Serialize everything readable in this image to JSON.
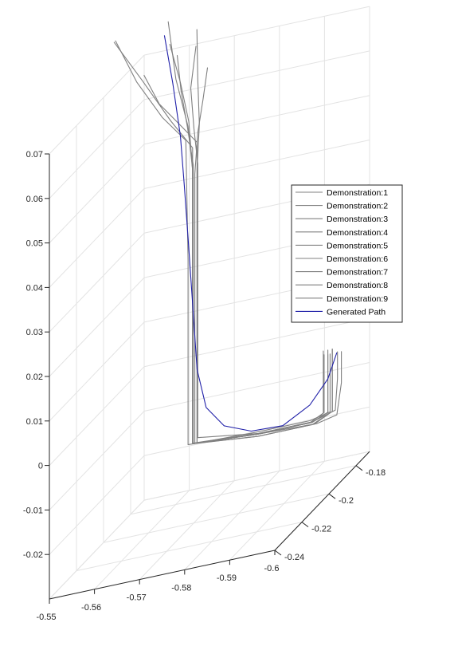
{
  "chart_data": {
    "type": "line",
    "projection": "3d",
    "title": "",
    "grid": true,
    "legend_position": "right-center",
    "colors": {
      "demonstration": "#808080",
      "generated": "#1f1fa8",
      "axis": "#262626",
      "grid": "#e3e3e3"
    },
    "x_axis": {
      "ticks": [
        -0.55,
        -0.56,
        -0.57,
        -0.58,
        -0.59,
        -0.6
      ],
      "tick_labels": [
        "-0.55",
        "-0.56",
        "-0.57",
        "-0.58",
        "-0.59",
        "-0.6"
      ],
      "range": [
        -0.6,
        -0.55
      ]
    },
    "y_axis": {
      "ticks": [
        -0.18,
        -0.2,
        -0.22,
        -0.24
      ],
      "tick_labels": [
        "-0.18",
        "-0.2",
        "-0.22",
        "-0.24"
      ],
      "range": [
        -0.24,
        -0.17
      ]
    },
    "z_axis": {
      "ticks": [
        -0.02,
        -0.01,
        0,
        0.01,
        0.02,
        0.03,
        0.04,
        0.05,
        0.06,
        0.07
      ],
      "tick_labels": [
        "-0.02",
        "-0.01",
        "0",
        "0.01",
        "0.02",
        "0.03",
        "0.04",
        "0.05",
        "0.06",
        "0.07"
      ],
      "range": [
        -0.03,
        0.07
      ]
    },
    "legend": [
      "Demonstration:1",
      "Demonstration:2",
      "Demonstration:3",
      "Demonstration:4",
      "Demonstration:5",
      "Demonstration:6",
      "Demonstration:7",
      "Demonstration:8",
      "Demonstration:9",
      "Generated Path"
    ],
    "series": [
      {
        "name": "Demonstration:1",
        "points": [
          [
            -0.571,
            -0.201,
            0.081
          ],
          [
            -0.5715,
            -0.202,
            0.07
          ],
          [
            -0.572,
            -0.2025,
            0.06
          ],
          [
            -0.5715,
            -0.2025,
            0.05
          ],
          [
            -0.5715,
            -0.2025,
            0.03
          ],
          [
            -0.5715,
            -0.2025,
            0.01
          ],
          [
            -0.5715,
            -0.2025,
            -0.01
          ],
          [
            -0.5715,
            -0.2025,
            -0.0115
          ],
          [
            -0.585,
            -0.2025,
            -0.0125
          ],
          [
            -0.598,
            -0.2025,
            -0.013
          ],
          [
            -0.6025,
            -0.2025,
            -0.012
          ],
          [
            -0.6035,
            -0.2025,
            -0.005
          ],
          [
            -0.6035,
            -0.2025,
            0.002
          ]
        ]
      },
      {
        "name": "Demonstration:2",
        "points": [
          [
            -0.5705,
            -0.2,
            0.077
          ],
          [
            -0.5695,
            -0.2005,
            0.068
          ],
          [
            -0.5705,
            -0.2015,
            0.059
          ],
          [
            -0.5715,
            -0.202,
            0.051
          ],
          [
            -0.5715,
            -0.202,
            0.03
          ],
          [
            -0.5715,
            -0.202,
            0.01
          ],
          [
            -0.5715,
            -0.202,
            -0.008
          ],
          [
            -0.5715,
            -0.202,
            -0.0105
          ],
          [
            -0.585,
            -0.202,
            -0.0125
          ],
          [
            -0.597,
            -0.202,
            -0.0125
          ],
          [
            -0.602,
            -0.202,
            -0.011
          ],
          [
            -0.6025,
            -0.202,
            -0.004
          ],
          [
            -0.6025,
            -0.202,
            0.002
          ]
        ]
      },
      {
        "name": "Demonstration:3",
        "points": [
          [
            -0.5645,
            -0.2005,
            0.084
          ],
          [
            -0.5665,
            -0.2015,
            0.071
          ],
          [
            -0.5695,
            -0.2025,
            0.06
          ],
          [
            -0.5705,
            -0.2025,
            0.05
          ],
          [
            -0.5705,
            -0.2025,
            0.03
          ],
          [
            -0.5705,
            -0.2025,
            0.01
          ],
          [
            -0.5705,
            -0.2025,
            -0.009
          ],
          [
            -0.5705,
            -0.2025,
            -0.0115
          ],
          [
            -0.585,
            -0.2025,
            -0.013
          ],
          [
            -0.597,
            -0.2025,
            -0.013
          ],
          [
            -0.6015,
            -0.2025,
            -0.011
          ],
          [
            -0.6015,
            -0.2025,
            -0.004
          ],
          [
            -0.6015,
            -0.2025,
            0.003
          ]
        ]
      },
      {
        "name": "Demonstration:4",
        "points": [
          [
            -0.5525,
            -0.1995,
            0.082
          ],
          [
            -0.5575,
            -0.2005,
            0.072
          ],
          [
            -0.5635,
            -0.2015,
            0.063
          ],
          [
            -0.569,
            -0.2025,
            0.057
          ],
          [
            -0.5695,
            -0.2025,
            0.03
          ],
          [
            -0.5695,
            -0.2025,
            0.01
          ],
          [
            -0.5695,
            -0.2025,
            -0.008
          ],
          [
            -0.5695,
            -0.2025,
            -0.0115
          ],
          [
            -0.585,
            -0.2025,
            -0.012
          ],
          [
            -0.5965,
            -0.2025,
            -0.012
          ],
          [
            -0.601,
            -0.2025,
            -0.011
          ],
          [
            -0.601,
            -0.2025,
            -0.003
          ],
          [
            -0.601,
            -0.2025,
            0.002
          ]
        ]
      },
      {
        "name": "Demonstration:5",
        "points": [
          [
            -0.5525,
            -0.2005,
            0.082
          ],
          [
            -0.559,
            -0.201,
            0.072
          ],
          [
            -0.5655,
            -0.202,
            0.062
          ],
          [
            -0.5705,
            -0.2025,
            0.055
          ],
          [
            -0.5705,
            -0.2025,
            0.03
          ],
          [
            -0.5705,
            -0.2025,
            0.01
          ],
          [
            -0.5705,
            -0.2025,
            -0.009
          ],
          [
            -0.5705,
            -0.2025,
            -0.0115
          ],
          [
            -0.585,
            -0.2025,
            -0.0125
          ],
          [
            -0.597,
            -0.2025,
            -0.0125
          ],
          [
            -0.6005,
            -0.2025,
            -0.011
          ],
          [
            -0.6005,
            -0.2025,
            -0.004
          ],
          [
            -0.6005,
            -0.2025,
            0.003
          ]
        ]
      },
      {
        "name": "Demonstration:6",
        "points": [
          [
            -0.565,
            -0.201,
            0.079
          ],
          [
            -0.5675,
            -0.2015,
            0.07
          ],
          [
            -0.5695,
            -0.202,
            0.061
          ],
          [
            -0.5705,
            -0.2025,
            0.05
          ],
          [
            -0.5705,
            -0.2025,
            0.03
          ],
          [
            -0.5705,
            -0.2025,
            0.01
          ],
          [
            -0.5705,
            -0.2025,
            -0.009
          ],
          [
            -0.5705,
            -0.2025,
            -0.0115
          ],
          [
            -0.585,
            -0.2025,
            -0.0125
          ],
          [
            -0.5965,
            -0.2025,
            -0.0125
          ],
          [
            -0.5995,
            -0.2025,
            -0.011
          ],
          [
            -0.5995,
            -0.2025,
            -0.004
          ],
          [
            -0.5995,
            -0.2025,
            0.003
          ]
        ]
      },
      {
        "name": "Demonstration:7",
        "points": [
          [
            -0.5735,
            -0.2015,
            0.072
          ],
          [
            -0.5725,
            -0.2015,
            0.065
          ],
          [
            -0.5715,
            -0.202,
            0.058
          ],
          [
            -0.571,
            -0.2025,
            0.049
          ],
          [
            -0.571,
            -0.2025,
            0.03
          ],
          [
            -0.571,
            -0.2025,
            0.01
          ],
          [
            -0.571,
            -0.2025,
            -0.009
          ],
          [
            -0.571,
            -0.2025,
            -0.0115
          ],
          [
            -0.585,
            -0.2025,
            -0.013
          ],
          [
            -0.5975,
            -0.2025,
            -0.013
          ],
          [
            -0.6015,
            -0.2025,
            -0.011
          ],
          [
            -0.6015,
            -0.2025,
            -0.004
          ],
          [
            -0.6015,
            -0.2025,
            0.003
          ]
        ]
      },
      {
        "name": "Demonstration:8",
        "points": [
          [
            -0.5665,
            -0.2005,
            0.076
          ],
          [
            -0.5675,
            -0.201,
            0.068
          ],
          [
            -0.569,
            -0.2015,
            0.06
          ],
          [
            -0.5705,
            -0.202,
            0.051
          ],
          [
            -0.5705,
            -0.202,
            0.03
          ],
          [
            -0.5705,
            -0.202,
            0.01
          ],
          [
            -0.5705,
            -0.202,
            -0.009
          ],
          [
            -0.5705,
            -0.202,
            -0.0115
          ],
          [
            -0.585,
            -0.202,
            -0.0125
          ],
          [
            -0.5965,
            -0.202,
            -0.0125
          ],
          [
            -0.5995,
            -0.202,
            -0.011
          ],
          [
            -0.5995,
            -0.202,
            -0.004
          ],
          [
            -0.5995,
            -0.202,
            0.002
          ]
        ]
      },
      {
        "name": "Demonstration:9",
        "points": [
          [
            -0.559,
            -0.2,
            0.073
          ],
          [
            -0.5625,
            -0.2005,
            0.066
          ],
          [
            -0.567,
            -0.2015,
            0.061
          ],
          [
            -0.5715,
            -0.2025,
            0.056
          ],
          [
            -0.5715,
            -0.2025,
            0.03
          ],
          [
            -0.5715,
            -0.2025,
            0.01
          ],
          [
            -0.5715,
            -0.2025,
            -0.009
          ],
          [
            -0.5715,
            -0.2025,
            -0.0115
          ],
          [
            -0.585,
            -0.2025,
            -0.0125
          ],
          [
            -0.597,
            -0.2025,
            -0.0125
          ],
          [
            -0.6005,
            -0.2025,
            -0.011
          ],
          [
            -0.6005,
            -0.2025,
            -0.004
          ],
          [
            -0.6005,
            -0.2025,
            0.002
          ]
        ]
      },
      {
        "name": "Generated Path",
        "points": [
          [
            -0.5635,
            -0.2,
            0.081
          ],
          [
            -0.5655,
            -0.2005,
            0.07
          ],
          [
            -0.5675,
            -0.2015,
            0.058
          ],
          [
            -0.5685,
            -0.202,
            0.047
          ],
          [
            -0.5695,
            -0.2025,
            0.035
          ],
          [
            -0.5705,
            -0.2025,
            0.02
          ],
          [
            -0.5715,
            -0.2025,
            0.005
          ],
          [
            -0.5735,
            -0.2025,
            -0.004
          ],
          [
            -0.5775,
            -0.2025,
            -0.009
          ],
          [
            -0.5835,
            -0.2025,
            -0.0115
          ],
          [
            -0.5905,
            -0.2025,
            -0.0118
          ],
          [
            -0.5965,
            -0.2025,
            -0.0085
          ],
          [
            -0.6005,
            -0.2025,
            -0.0035
          ],
          [
            -0.6025,
            -0.2025,
            0.002
          ]
        ]
      }
    ]
  }
}
